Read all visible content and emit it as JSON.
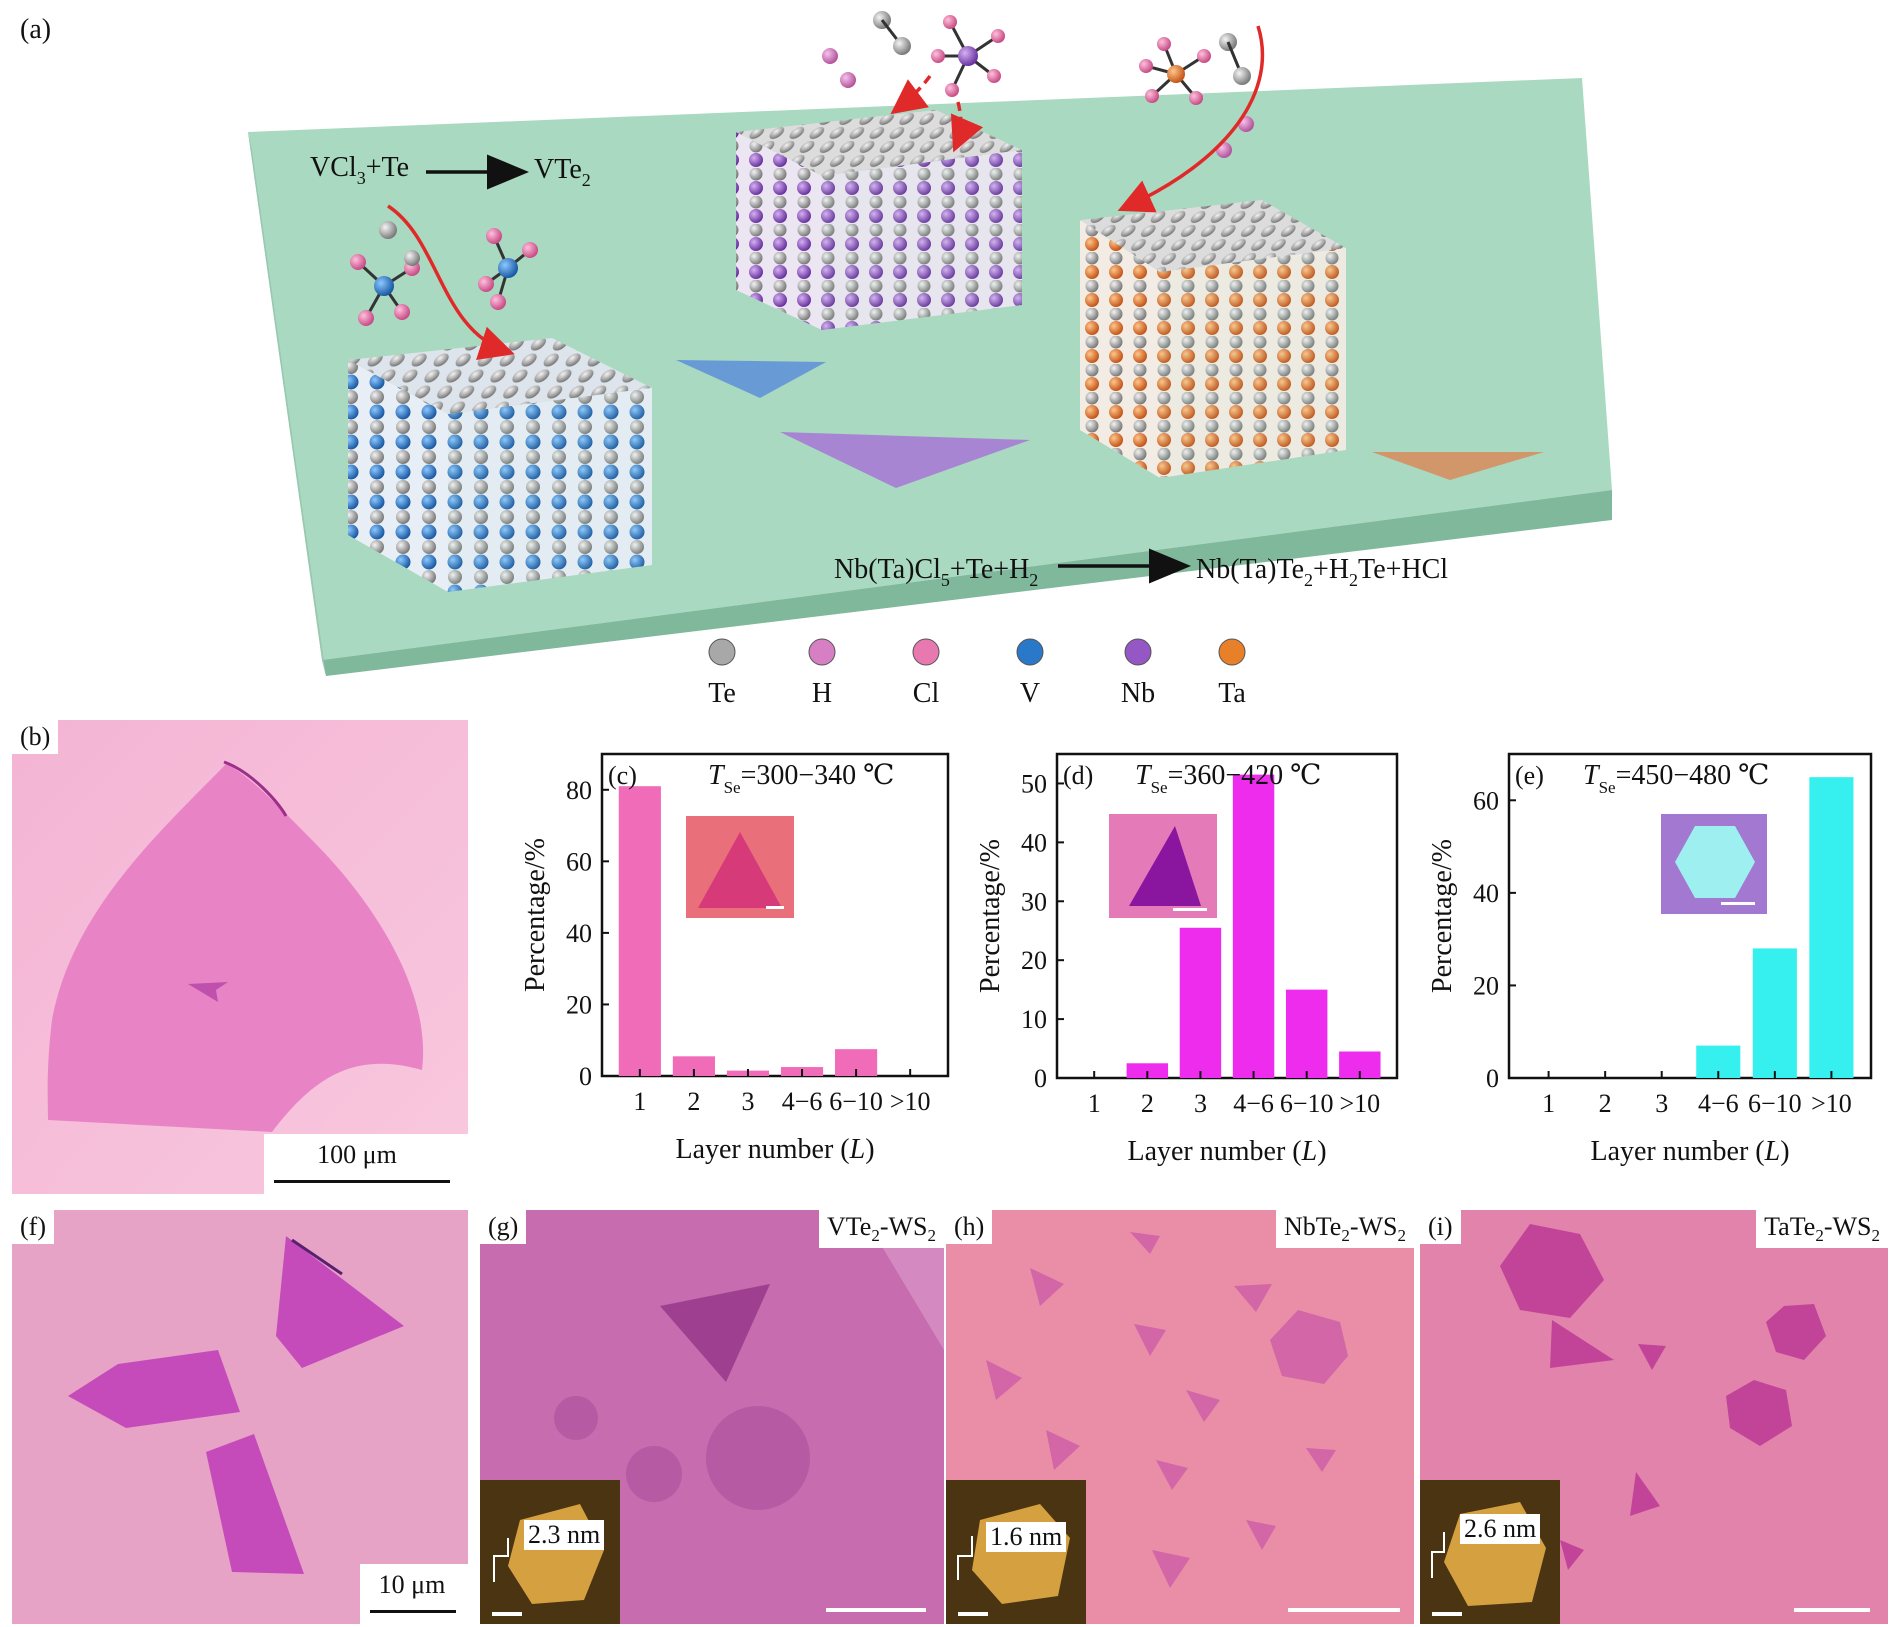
{
  "panel_a": {
    "label": "(a)",
    "reaction1": {
      "lhs": "VCl",
      "lhs_sub": "3",
      "lhs_rest": "+Te",
      "rhs": "VTe",
      "rhs_sub": "2"
    },
    "reaction2": {
      "lhs": "Nb(Ta)Cl",
      "lhs_sub": "5",
      "lhs_rest": "+Te+H",
      "lhs_sub2": "2",
      "rhs": "Nb(Ta)Te",
      "rhs_sub": "2",
      "rhs_rest": "+H",
      "rhs_sub2": "2",
      "rhs_rest2": "Te+HCl"
    },
    "legend": [
      {
        "label": "Te",
        "color": "#a8a8a8"
      },
      {
        "label": "H",
        "color": "#d77fc4"
      },
      {
        "label": "Cl",
        "color": "#e879b0"
      },
      {
        "label": "V",
        "color": "#2a78c8"
      },
      {
        "label": "Nb",
        "color": "#9457c4"
      },
      {
        "label": "Ta",
        "color": "#e8802a"
      }
    ],
    "colors": {
      "substrate": "#a9d9c1",
      "substrate_edge": "#7fb89b"
    }
  },
  "panel_b": {
    "label": "(b)",
    "scalebar": "100 μm"
  },
  "panel_f": {
    "label": "(f)",
    "scalebar": "10 μm"
  },
  "panel_g": {
    "label": "(g)",
    "tag": "VTe",
    "tag_sub": "2",
    "tag_rest": "-WS",
    "tag_sub2": "2",
    "afm": "2.3 nm"
  },
  "panel_h": {
    "label": "(h)",
    "tag": "NbTe",
    "tag_sub": "2",
    "tag_rest": "-WS",
    "tag_sub2": "2",
    "afm": "1.6 nm"
  },
  "panel_i": {
    "label": "(i)",
    "tag": "TaTe",
    "tag_sub": "2",
    "tag_rest": "-WS",
    "tag_sub2": "2",
    "afm": "2.6 nm"
  },
  "chart_data": [
    {
      "type": "bar",
      "panel": "(c)",
      "title_var": "T",
      "title_sub": "Se",
      "title_rest": "=300−340 ℃",
      "categories": [
        "1",
        "2",
        "3",
        "4−6",
        "6−10",
        ">10"
      ],
      "values": [
        81,
        5.5,
        1.5,
        2.5,
        7.5,
        0
      ],
      "ylabel": "Percentage/%",
      "xlabel": "Layer number (",
      "xlabel_var": "L",
      "xlabel_end": ")",
      "ylim": [
        0,
        90
      ],
      "yticks": [
        0,
        20,
        40,
        60,
        80
      ],
      "color": "#f06cb8"
    },
    {
      "type": "bar",
      "panel": "(d)",
      "title_var": "T",
      "title_sub": "Se",
      "title_rest": "=360−420 ℃",
      "categories": [
        "1",
        "2",
        "3",
        "4−6",
        "6−10",
        ">10"
      ],
      "values": [
        0,
        2.5,
        25.5,
        51.5,
        15,
        4.5
      ],
      "ylabel": "Percentage/%",
      "xlabel": "Layer number (",
      "xlabel_var": "L",
      "xlabel_end": ")",
      "ylim": [
        0,
        55
      ],
      "yticks": [
        0,
        10,
        20,
        30,
        40,
        50
      ],
      "color": "#ee2cee"
    },
    {
      "type": "bar",
      "panel": "(e)",
      "title_var": "T",
      "title_sub": "Se",
      "title_rest": "=450−480 ℃",
      "categories": [
        "1",
        "2",
        "3",
        "4−6",
        "6−10",
        ">10"
      ],
      "values": [
        0,
        0,
        0,
        7,
        28,
        65
      ],
      "ylabel": "Percentage/%",
      "xlabel": "Layer number (",
      "xlabel_var": "L",
      "xlabel_end": ")",
      "ylim": [
        0,
        70
      ],
      "yticks": [
        0,
        20,
        40,
        60
      ],
      "color": "#35f0ee"
    }
  ]
}
